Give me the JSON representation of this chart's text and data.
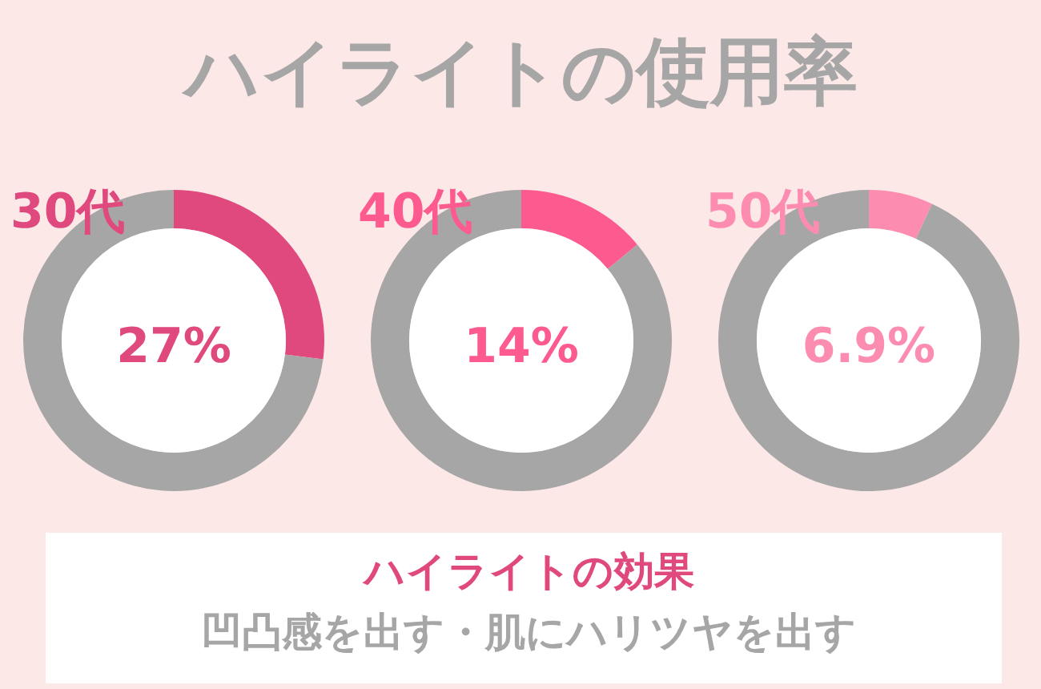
{
  "chart_data": [
    {
      "type": "other",
      "title": "ハイライトの使用率"
    },
    {
      "type": "donut",
      "title": "30代",
      "categories": [
        null,
        null
      ],
      "values": [
        27,
        73
      ],
      "colors": [
        "#e0497d",
        "#a6a6a6"
      ],
      "annotations": [
        "27%"
      ]
    },
    {
      "type": "donut",
      "title": "40代",
      "categories": [
        null,
        null
      ],
      "values": [
        14,
        86
      ],
      "colors": [
        "#fd5b8f",
        "#a6a6a6"
      ],
      "annotations": [
        "14%"
      ]
    },
    {
      "type": "donut",
      "title": "50代",
      "categories": [
        null,
        null
      ],
      "values": [
        6.9,
        93.1
      ],
      "colors": [
        "#fd8db0",
        "#a6a6a6"
      ],
      "annotations": [
        "6.9%"
      ]
    },
    {
      "type": "other",
      "title": "ハイライトの効果",
      "annotations": [
        "凹凸感を出す・肌にハリツヤを出す"
      ]
    }
  ]
}
